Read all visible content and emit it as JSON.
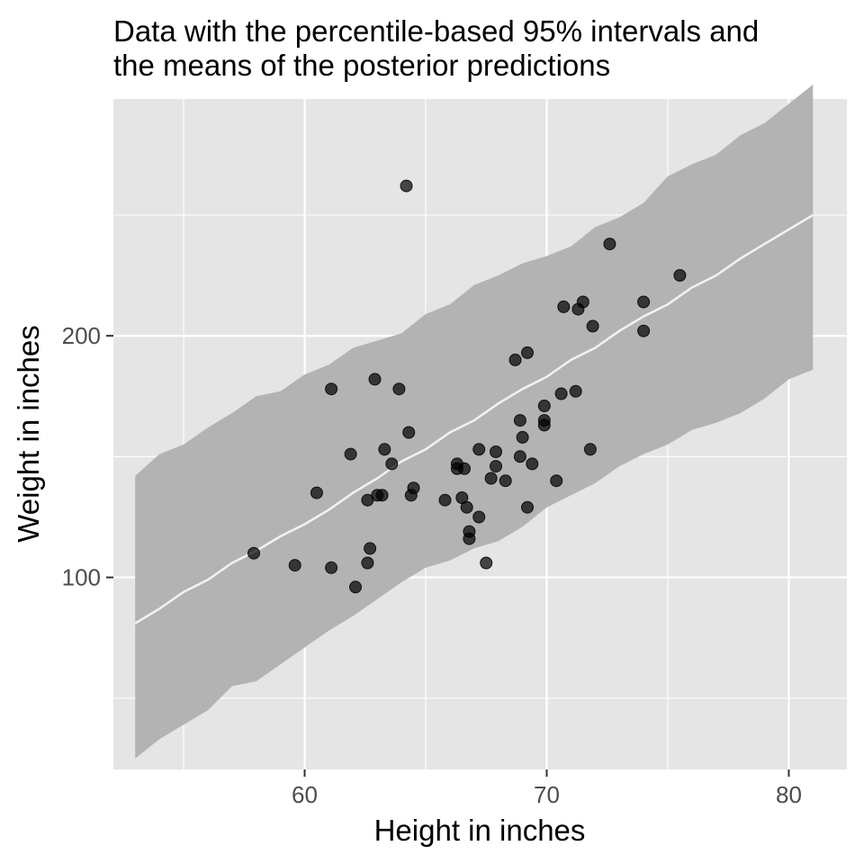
{
  "chart_data": {
    "type": "scatter",
    "title_line1": "Data with the percentile-based 95% intervals and",
    "title_line2": "the means of the posterior predictions",
    "xlabel": "Height in inches",
    "ylabel": "Weight in inches",
    "xlim": [
      52.1,
      82.4
    ],
    "ylim": [
      20.5,
      298
    ],
    "x_ticks": [
      60,
      70,
      80
    ],
    "y_ticks": [
      100,
      200
    ],
    "x_tick_labels": [
      "60",
      "70",
      "80"
    ],
    "y_tick_labels": [
      "100",
      "200"
    ],
    "grid": true,
    "colors": {
      "panel": "#e5e5e5",
      "ribbon": "#b3b3b3",
      "mean_line": "#f2f2f2",
      "points": "#000000",
      "tick_text": "#4d4d4d"
    },
    "interval": {
      "x": [
        53,
        54,
        55,
        56,
        57,
        58,
        59,
        60,
        61,
        62,
        63,
        64,
        65,
        66,
        67,
        68,
        69,
        70,
        71,
        72,
        73,
        74,
        75,
        76,
        77,
        78,
        79,
        80,
        81
      ],
      "lower": [
        25,
        33,
        39,
        45,
        55,
        57,
        64,
        71,
        78,
        84,
        91,
        98,
        104,
        107,
        112,
        115,
        121,
        129,
        134,
        139,
        146,
        151,
        155,
        161,
        164,
        168,
        174,
        182,
        186
      ],
      "upper": [
        142,
        151,
        155,
        162,
        168,
        175,
        177,
        184,
        188,
        195,
        198,
        201,
        209,
        213,
        221,
        225,
        230,
        233,
        237,
        245,
        249,
        255,
        266,
        271,
        275,
        283,
        288,
        296,
        304
      ]
    },
    "mean_line": {
      "x": [
        53,
        54,
        55,
        56,
        57,
        58,
        59,
        60,
        61,
        62,
        63,
        64,
        65,
        66,
        67,
        68,
        69,
        70,
        71,
        72,
        73,
        74,
        75,
        76,
        77,
        78,
        79,
        80,
        81
      ],
      "y": [
        81,
        87,
        94,
        99,
        106,
        111,
        117,
        122,
        128,
        135,
        141,
        148,
        153,
        160,
        165,
        172,
        178,
        183,
        190,
        195,
        202,
        208,
        213,
        220,
        225,
        232,
        238,
        244,
        250
      ]
    },
    "points": {
      "name": "Data",
      "x": [
        57.9,
        59.6,
        60.5,
        61.1,
        61.1,
        61.9,
        62.1,
        62.6,
        62.6,
        62.7,
        62.9,
        63.0,
        63.2,
        63.3,
        63.6,
        63.9,
        64.2,
        64.3,
        64.4,
        64.5,
        65.8,
        66.3,
        66.3,
        66.5,
        66.6,
        66.7,
        66.8,
        66.8,
        67.2,
        67.2,
        67.5,
        67.7,
        67.9,
        67.9,
        68.3,
        68.7,
        68.9,
        68.9,
        69.0,
        69.2,
        69.2,
        69.4,
        69.9,
        69.9,
        69.9,
        70.4,
        70.6,
        70.7,
        71.2,
        71.3,
        71.5,
        71.8,
        71.9,
        72.6,
        74.0,
        74.0,
        75.5
      ],
      "y": [
        110,
        105,
        135,
        104,
        178,
        151,
        96,
        132,
        106,
        112,
        182,
        134,
        134,
        153,
        147,
        178,
        262,
        160,
        134,
        137,
        132,
        147,
        145,
        133,
        145,
        129,
        116,
        119,
        153,
        125,
        106,
        141,
        152,
        146,
        140,
        190,
        165,
        150,
        158,
        129,
        193,
        147,
        171,
        165,
        163,
        140,
        176,
        212,
        177,
        211,
        214,
        153,
        204,
        238,
        214,
        202,
        225
      ]
    }
  }
}
